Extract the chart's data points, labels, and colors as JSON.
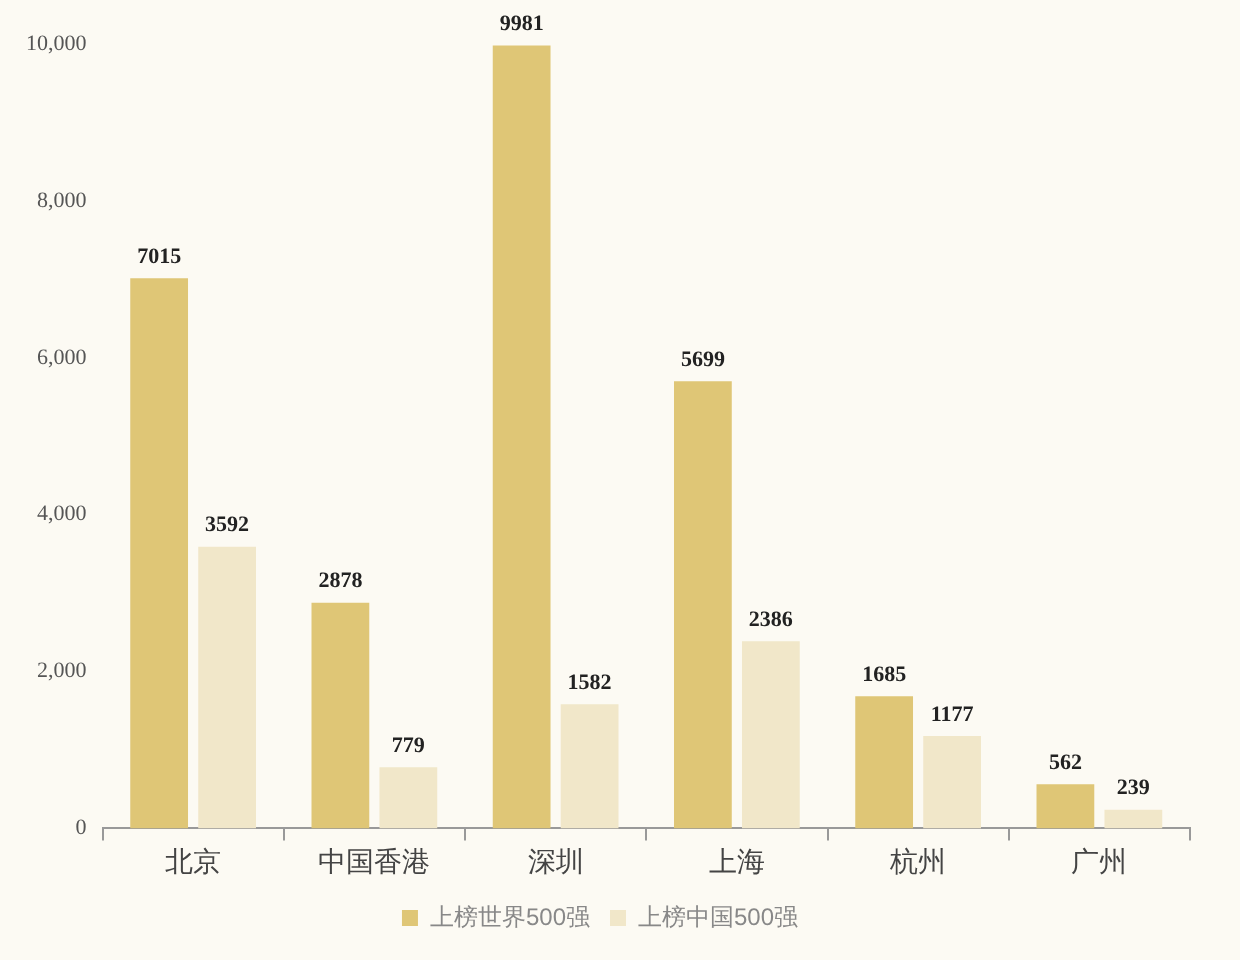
{
  "chart_data": {
    "type": "bar",
    "categories": [
      "北京",
      "中国香港",
      "深圳",
      "上海",
      "杭州",
      "广州"
    ],
    "series": [
      {
        "name": "上榜世界500强",
        "color": "#dfc676",
        "values": [
          7015,
          2878,
          9981,
          5699,
          1685,
          562
        ]
      },
      {
        "name": "上榜中国500强",
        "color": "#f1e7c9",
        "values": [
          3592,
          779,
          1582,
          2386,
          1177,
          239
        ]
      }
    ],
    "ylim": [
      0,
      10000
    ],
    "yticks": [
      0,
      {
        "value": 2000,
        "label": "2,000"
      },
      {
        "value": 4000,
        "label": "4,000"
      },
      {
        "value": 6000,
        "label": "6,000"
      },
      {
        "value": 8000,
        "label": "8,000"
      },
      {
        "value": 10000,
        "label": "10,000"
      }
    ],
    "grid": false,
    "legend": "bottom",
    "data_labels": true
  }
}
